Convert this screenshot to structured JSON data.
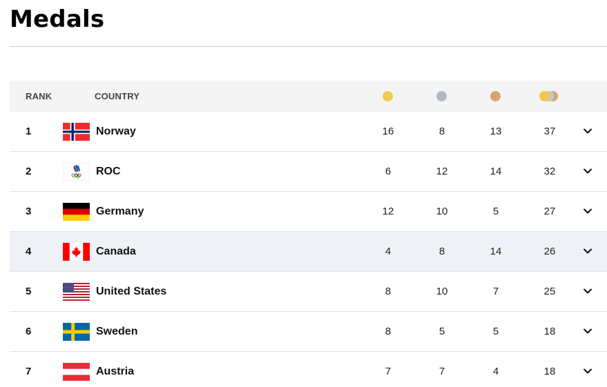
{
  "page": {
    "title": "Medals"
  },
  "table": {
    "headers": {
      "rank": "RANK",
      "country": "COUNTRY"
    },
    "medal_colors": {
      "gold": "#f2c94c",
      "silver": "#b4b9c6",
      "bronze": "#d7a56d"
    },
    "rows": [
      {
        "rank": "1",
        "country": "Norway",
        "flag": "norway-flag",
        "gold": "16",
        "silver": "8",
        "bronze": "13",
        "total": "37"
      },
      {
        "rank": "2",
        "country": "ROC",
        "flag": "roc-emblem",
        "gold": "6",
        "silver": "12",
        "bronze": "14",
        "total": "32"
      },
      {
        "rank": "3",
        "country": "Germany",
        "flag": "germany-flag",
        "gold": "12",
        "silver": "10",
        "bronze": "5",
        "total": "27"
      },
      {
        "rank": "4",
        "country": "Canada",
        "flag": "canada-flag",
        "gold": "4",
        "silver": "8",
        "bronze": "14",
        "total": "26",
        "highlighted": true
      },
      {
        "rank": "5",
        "country": "United States",
        "flag": "united-states-flag",
        "gold": "8",
        "silver": "10",
        "bronze": "7",
        "total": "25"
      },
      {
        "rank": "6",
        "country": "Sweden",
        "flag": "sweden-flag",
        "gold": "8",
        "silver": "5",
        "bronze": "5",
        "total": "18"
      },
      {
        "rank": "7",
        "country": "Austria",
        "flag": "austria-flag",
        "gold": "7",
        "silver": "7",
        "bronze": "4",
        "total": "18"
      }
    ]
  }
}
